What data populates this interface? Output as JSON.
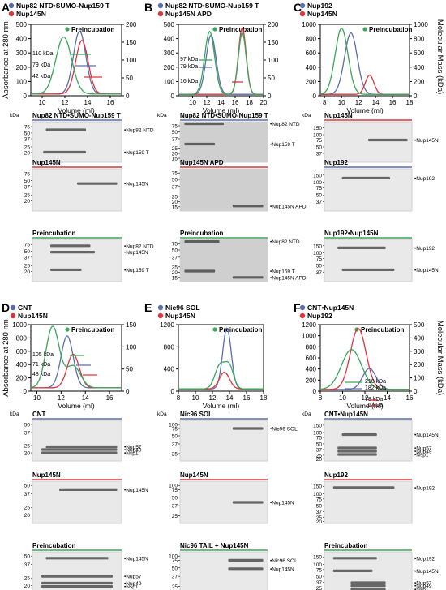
{
  "panel_letters": [
    "A",
    "B",
    "C",
    "D",
    "E",
    "F"
  ],
  "shared": {
    "y_left_label": "Absorbance at 280 nm",
    "y_right_label": "Molecular Mass (kDa)",
    "x_label": "Volume (ml)",
    "kda": "kDa",
    "preincubation": "Preincubation"
  },
  "colors": {
    "blue": "#5b6dab",
    "red": "#d9373b",
    "green": "#3aa65a",
    "gray": "#b9b9b9"
  },
  "panels": {
    "A": {
      "legend": [
        "Nup82 NTD•SUMO-Nup159 T",
        "Nup145N"
      ],
      "legend_colors": [
        "blue",
        "red"
      ],
      "annotations": [
        "110 kDa",
        "79 kDa",
        "42 kDa"
      ],
      "gels": [
        {
          "title": "Nup82 NTD•SUMO-Nup159 T",
          "line": "blue",
          "bands": [
            "Nup82 NTD",
            "Nup159 T"
          ]
        },
        {
          "title": "Nup145N",
          "line": "red",
          "bands": [
            "Nup145N"
          ]
        },
        {
          "title": "Preincubation",
          "line": "green",
          "bands": [
            "Nup82 NTD",
            "Nup145N",
            "Nup159 T"
          ]
        }
      ]
    },
    "B": {
      "legend": [
        "Nup82 NTD•SUMO-Nup159 T",
        "Nup145N APD"
      ],
      "legend_colors": [
        "blue",
        "red"
      ],
      "annotations": [
        "97 kDa",
        "79 kDa",
        "16 kDa"
      ],
      "gels": [
        {
          "title": "Nup82 NTD•SUMO-Nup159 T",
          "line": "blue",
          "bands": [
            "Nup82 NTD",
            "Nup159 T"
          ]
        },
        {
          "title": "Nup145N APD",
          "line": "red",
          "bands": [
            "Nup145N APD"
          ]
        },
        {
          "title": "Preincubation",
          "line": "green",
          "bands": [
            "Nup82 NTD",
            "Nup159 T",
            "Nup145N APD"
          ]
        }
      ]
    },
    "C": {
      "legend": [
        "Nup192",
        "Nup145N"
      ],
      "legend_colors": [
        "blue",
        "red"
      ],
      "gels": [
        {
          "title": "Nup145N",
          "line": "red",
          "bands": [
            "Nup145N"
          ]
        },
        {
          "title": "Nup192",
          "line": "blue",
          "bands": [
            "Nup192"
          ]
        },
        {
          "title": "Nup192•Nup145N",
          "line": "green",
          "bands": [
            "Nup192",
            "Nup145N"
          ]
        }
      ]
    },
    "D": {
      "legend": [
        "CNT",
        "Nup145N"
      ],
      "legend_colors": [
        "blue",
        "red"
      ],
      "annotations": [
        "105 kDa",
        "71 kDa",
        "48 kDa"
      ],
      "gels": [
        {
          "title": "CNT",
          "line": "blue",
          "bands": [
            "Nup57",
            "Nup49",
            "Nsp1"
          ]
        },
        {
          "title": "Nup145N",
          "line": "red",
          "bands": [
            "Nup145N"
          ]
        },
        {
          "title": "Preincubation",
          "line": "green",
          "bands": [
            "Nup145N",
            "Nup57",
            "Nup49",
            "Nsp1"
          ]
        }
      ]
    },
    "E": {
      "legend": [
        "Nic96 SOL",
        "Nup145N"
      ],
      "legend_colors": [
        "blue",
        "red"
      ],
      "gels": [
        {
          "title": "Nic96 SOL",
          "line": "blue",
          "bands": [
            "Nic96 SOL"
          ]
        },
        {
          "title": "Nup145N",
          "line": "red",
          "bands": [
            "Nup145N"
          ]
        },
        {
          "title": "Nic96 TAIL + Nup145N",
          "line": "green",
          "bands": [
            "Nic96 SOL",
            "Nup145N"
          ]
        }
      ]
    },
    "F": {
      "legend": [
        "CNT•Nup145N",
        "Nup192"
      ],
      "legend_colors": [
        "blue",
        "red"
      ],
      "annotations": [
        "210 kDa",
        "182 kDa",
        "78 kDa",
        "76 kDa"
      ],
      "gels": [
        {
          "title": "CNT•Nup145N",
          "line": "blue",
          "bands": [
            "Nup145N",
            "Nup57",
            "Nup49",
            "Nsp1"
          ]
        },
        {
          "title": "Nup192",
          "line": "red",
          "bands": [
            "Nup192"
          ]
        },
        {
          "title": "Preincubation",
          "line": "green",
          "bands": [
            "Nup192",
            "Nup145N",
            "Nup57",
            "Nup49",
            "Nsp1"
          ]
        }
      ]
    }
  },
  "chart_data": [
    {
      "panel": "A",
      "type": "line",
      "xlim": [
        9,
        17
      ],
      "xticks": [
        10,
        12,
        14,
        16
      ],
      "ylim": [
        0,
        500
      ],
      "yticks": [
        0,
        100,
        200,
        300,
        400,
        500
      ],
      "y2lim": [
        0,
        200
      ],
      "y2ticks": [
        0,
        50,
        100,
        150,
        200
      ],
      "series": [
        {
          "color": "blue",
          "peaks": [
            [
              13.3,
              440,
              0.55
            ]
          ],
          "base": 12
        },
        {
          "color": "red",
          "peaks": [
            [
              13.5,
              375,
              0.55
            ]
          ],
          "base": 12
        },
        {
          "color": "green",
          "peaks": [
            [
              11.9,
              400,
              0.7
            ]
          ],
          "base": 12
        }
      ]
    },
    {
      "panel": "B",
      "type": "line",
      "xlim": [
        8,
        20
      ],
      "xticks": [
        10,
        12,
        14,
        16,
        18,
        20
      ],
      "ylim": [
        0,
        500
      ],
      "yticks": [
        0,
        100,
        200,
        300,
        400,
        500
      ],
      "y2lim": [
        0,
        200
      ],
      "y2ticks": [
        0,
        50,
        100,
        150,
        200
      ],
      "series": [
        {
          "color": "blue",
          "peaks": [
            [
              12.6,
              415,
              0.7
            ]
          ],
          "base": 10
        },
        {
          "color": "red",
          "peaks": [
            [
              17.0,
              465,
              0.55
            ]
          ],
          "base": 10
        },
        {
          "color": "green",
          "peaks": [
            [
              12.4,
              440,
              0.7
            ],
            [
              17.0,
              430,
              0.55
            ]
          ],
          "base": 10
        }
      ]
    },
    {
      "panel": "C",
      "type": "line",
      "xlim": [
        7.5,
        18
      ],
      "xticks": [
        8,
        10,
        12,
        14,
        16,
        18
      ],
      "ylim": [
        0,
        1000
      ],
      "yticks": [
        0,
        200,
        400,
        600,
        800,
        1000
      ],
      "y2lim": [
        0,
        1000
      ],
      "y2ticks": [
        0,
        200,
        400,
        600,
        800,
        1000
      ],
      "series": [
        {
          "color": "blue",
          "peaks": [
            [
              11.1,
              860,
              0.75
            ]
          ],
          "base": 20
        },
        {
          "color": "red",
          "peaks": [
            [
              13.3,
              270,
              0.5
            ]
          ],
          "base": 20
        },
        {
          "color": "green",
          "peaks": [
            [
              10.0,
              925,
              0.75
            ]
          ],
          "base": 20
        }
      ]
    },
    {
      "panel": "D",
      "type": "line",
      "xlim": [
        9.5,
        17
      ],
      "xticks": [
        10,
        12,
        14,
        16
      ],
      "ylim": [
        0,
        1000
      ],
      "yticks": [
        0,
        200,
        400,
        600,
        800,
        1000
      ],
      "y2lim": [
        0,
        150
      ],
      "y2ticks": [
        0,
        50,
        100,
        150
      ],
      "series": [
        {
          "color": "blue",
          "peaks": [
            [
              12.5,
              780,
              0.5
            ]
          ],
          "base": 50
        },
        {
          "color": "red",
          "peaks": [
            [
              13.0,
              505,
              0.5
            ]
          ],
          "base": 50
        },
        {
          "color": "green",
          "peaks": [
            [
              11.3,
              920,
              0.55
            ],
            [
              13.0,
              330,
              0.6
            ]
          ],
          "base": 50
        }
      ]
    },
    {
      "panel": "E",
      "type": "line",
      "xlim": [
        8,
        18
      ],
      "xticks": [
        8,
        10,
        12,
        14,
        16,
        18
      ],
      "ylim": [
        0,
        1200
      ],
      "yticks": [
        0,
        400,
        800,
        1200
      ],
      "series": [
        {
          "color": "blue",
          "peaks": [
            [
              13.7,
              1100,
              0.5
            ]
          ],
          "base": 40
        },
        {
          "color": "red",
          "peaks": [
            [
              13.4,
              300,
              0.6
            ]
          ],
          "base": 40
        },
        {
          "color": "green",
          "peaks": [
            [
              12.9,
              430,
              0.6
            ],
            [
              14.0,
              380,
              0.5
            ]
          ],
          "base": 40
        }
      ]
    },
    {
      "panel": "F",
      "type": "line",
      "xlim": [
        8,
        16
      ],
      "xticks": [
        8,
        10,
        12,
        14,
        16
      ],
      "ylim": [
        0,
        1200
      ],
      "yticks": [
        0,
        200,
        400,
        600,
        800,
        1000,
        1200
      ],
      "y2lim": [
        0,
        500
      ],
      "y2ticks": [
        0,
        100,
        200,
        300,
        400,
        500
      ],
      "series": [
        {
          "color": "blue",
          "peaks": [
            [
              12.4,
              380,
              0.6
            ]
          ],
          "base": 30
        },
        {
          "color": "red",
          "peaks": [
            [
              11.4,
              1100,
              0.7
            ]
          ],
          "base": 30
        },
        {
          "color": "green",
          "peaks": [
            [
              10.8,
              720,
              0.9
            ]
          ],
          "base": 30
        }
      ]
    }
  ]
}
